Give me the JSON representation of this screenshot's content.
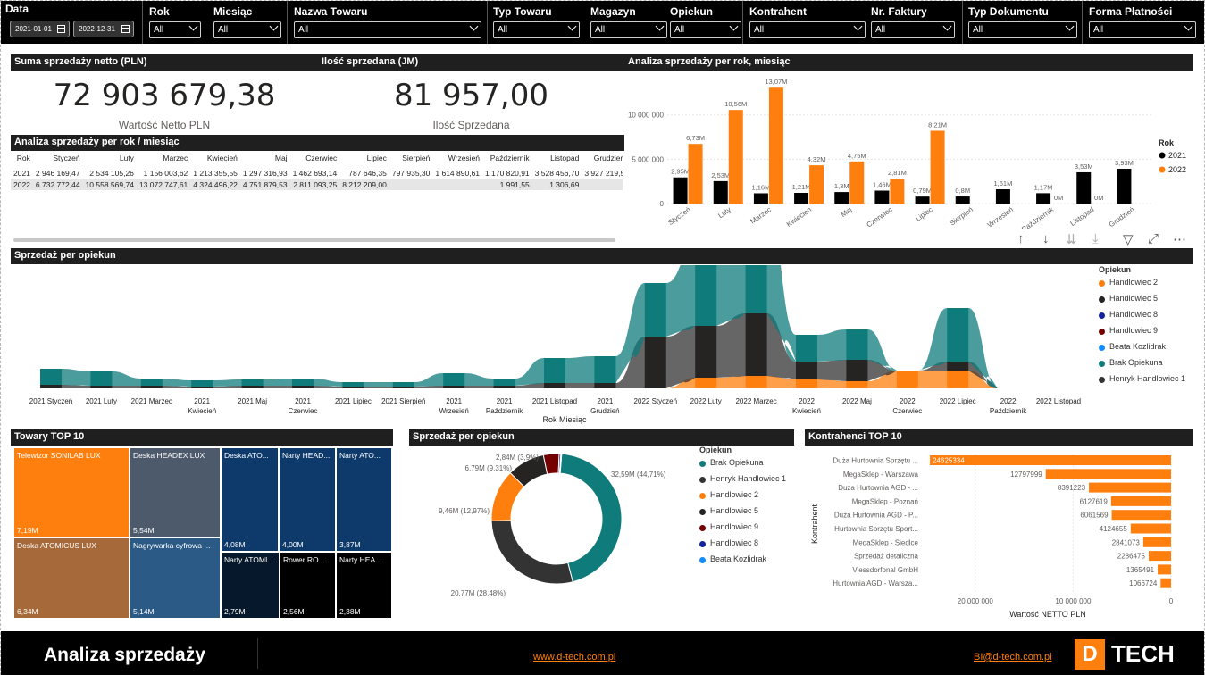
{
  "filters": {
    "date_label": "Data",
    "date_from": "2021-01-01",
    "date_to": "2022-12-31",
    "slicers": [
      {
        "label": "Rok",
        "value": "All"
      },
      {
        "label": "Miesiąc",
        "value": "All"
      },
      {
        "label": "Nazwa Towaru",
        "value": "All"
      },
      {
        "label": "Typ Towaru",
        "value": "All"
      },
      {
        "label": "Magazyn",
        "value": "All"
      },
      {
        "label": "Opiekun",
        "value": "All"
      },
      {
        "label": "Kontrahent",
        "value": "All"
      },
      {
        "label": "Nr. Faktury",
        "value": "All"
      },
      {
        "label": "Typ Dokumentu",
        "value": "All"
      },
      {
        "label": "Forma Płatności",
        "value": "All"
      }
    ]
  },
  "kpi": {
    "sales_header": "Suma sprzedaży netto (PLN)",
    "sales_value": "72 903 679,38",
    "sales_sub": "Wartość Netto PLN",
    "qty_header": "Ilość sprzedana (JM)",
    "qty_value": "81 957,00",
    "qty_sub": "Ilość Sprzedana"
  },
  "matrix": {
    "header": "Analiza sprzedaży per rok / miesiąc",
    "columns": [
      "Rok",
      "Styczeń",
      "Luty",
      "Marzec",
      "Kwiecień",
      "Maj",
      "Czerwiec",
      "Lipiec",
      "Sierpień",
      "Wrzesień",
      "Październik",
      "Listopad",
      "Grudzień"
    ],
    "rows": [
      [
        "2021",
        "2 946 169,47",
        "2 534 105,26",
        "1 156 003,62",
        "1 213 355,55",
        "1 297 316,93",
        "1 462 693,14",
        "787 646,35",
        "797 935,30",
        "1 614 890,61",
        "1 170 820,91",
        "3 528 456,70",
        "3 927 219,5"
      ],
      [
        "2022",
        "6 732 772,44",
        "10 558 569,74",
        "13 072 747,61",
        "4 324 496,22",
        "4 751 879,53",
        "2 811 093,25",
        "8 212 209,00",
        "",
        "",
        "1 991,55",
        "1 306,69",
        ""
      ]
    ]
  },
  "bar_chart": {
    "header": "Analiza sprzedaży per rok, miesiąc",
    "legend_title": "Rok",
    "colors": {
      "2021": "#000000",
      "2022": "#ff7f0e"
    },
    "y_ticks": [
      "0",
      "5 000 000",
      "10 000 000"
    ]
  },
  "chart_data": [
    {
      "type": "bar",
      "title": "Analiza sprzedaży per rok, miesiąc",
      "categories": [
        "Styczeń",
        "Luty",
        "Marzec",
        "Kwiecień",
        "Maj",
        "Czerwiec",
        "Lipiec",
        "Sierpień",
        "Wrzesień",
        "Październik",
        "Listopad",
        "Grudzień"
      ],
      "series": [
        {
          "name": "2021",
          "values": [
            2.95,
            2.53,
            1.16,
            1.21,
            1.3,
            1.46,
            0.79,
            0.8,
            1.61,
            1.17,
            3.53,
            3.93
          ],
          "labels": [
            "2,95M",
            "2,53M",
            "1,16M",
            "1,21M",
            "1,3M",
            "1,46M",
            "0,79M",
            "0,8M",
            "1,61M",
            "1,17M",
            "3,53M",
            "3,93M"
          ]
        },
        {
          "name": "2022",
          "values": [
            6.73,
            10.56,
            13.07,
            4.32,
            4.75,
            2.81,
            8.21,
            null,
            null,
            0,
            0,
            null
          ],
          "labels": [
            "6,73M",
            "10,56M",
            "13,07M",
            "4,32M",
            "4,75M",
            "2,81M",
            "8,21M",
            "",
            "",
            "0M",
            "0M",
            ""
          ]
        }
      ],
      "ylim": [
        0,
        14
      ],
      "legend": "right"
    },
    {
      "type": "pie",
      "title": "Sprzedaż per opiekun",
      "categories": [
        "Brak Opiekuna",
        "Henryk Handlowiec 1",
        "Handlowiec 2",
        "Handlowiec 5",
        "Handlowiec 9",
        "Handlowiec 8",
        "Beata Kozlidrak"
      ],
      "values": [
        32.59,
        20.77,
        9.46,
        6.79,
        2.84,
        0.3,
        0.15
      ],
      "labels": [
        "32,59M (44,71%)",
        "20,77M (28,48%)",
        "9,46M (12,97%)",
        "6,79M (9,31%)",
        "2,84M (3,9%)",
        "",
        ""
      ]
    },
    {
      "type": "bar",
      "title": "Kontrahenci TOP 10",
      "categories": [
        "Duża Hurtownia Sprzętu ...",
        "MegaSklep - Warszawa",
        "Duża Hurtownia AGD - ...",
        "MegaSklep - Poznań",
        "Duża Hurtownia AGD - P...",
        "Hurtownia Sprzętu Sport...",
        "MegaSklep - Siedlce",
        "Sprzedaż detaliczna",
        "Viessdorfonal GmbH",
        "Hurtownia AGD - Warsza..."
      ],
      "values": [
        24625334,
        12797999,
        8391223,
        6127619,
        6061569,
        4124655,
        2841073,
        2286475,
        1365491,
        1066724
      ],
      "xlabel": "Wartość NETTO PLN",
      "ylabel": "Kontrahent",
      "x_ticks": [
        "20 000 000",
        "10 000 000",
        "0"
      ]
    },
    {
      "type": "area",
      "title": "Sprzedaż per opiekun",
      "categories": [
        "2021 Styczeń",
        "2021 Luty",
        "2021 Marzec",
        "2021 Kwiecień",
        "2021 Maj",
        "2021 Czerwiec",
        "2021 Lipiec",
        "2021 Sierpień",
        "2021 Wrzesień",
        "2021 Październik",
        "2021 Listopad",
        "2021 Grudzień",
        "2022 Styczeń",
        "2022 Luty",
        "2022 Marzec",
        "2022 Kwiecień",
        "2022 Maj",
        "2022 Czerwiec",
        "2022 Lipiec",
        "2022 Październik",
        "2022 Listopad"
      ],
      "xlabel": "Rok Miesiąc"
    }
  ],
  "ribbon": {
    "header": "Sprzedaż per opiekun",
    "legend_title": "Opiekun",
    "legend": [
      {
        "name": "Handlowiec 2",
        "color": "#ff7f0e"
      },
      {
        "name": "Handlowiec 5",
        "color": "#252423"
      },
      {
        "name": "Handlowiec 8",
        "color": "#12239e"
      },
      {
        "name": "Handlowiec 9",
        "color": "#750000"
      },
      {
        "name": "Beata Kozlidrak",
        "color": "#118dff"
      },
      {
        "name": "Brak Opiekuna",
        "color": "#0f7b7b"
      },
      {
        "name": "Henryk Handlowiec 1",
        "color": "#333333"
      }
    ],
    "x_labels": [
      [
        "2021 Styczeń"
      ],
      [
        "2021 Luty"
      ],
      [
        "2021 Marzec"
      ],
      [
        "2021",
        "Kwiecień"
      ],
      [
        "2021 Maj"
      ],
      [
        "2021",
        "Czerwiec"
      ],
      [
        "2021 Lipiec"
      ],
      [
        "2021 Sierpień"
      ],
      [
        "2021",
        "Wrzesień"
      ],
      [
        "2021",
        "Październik"
      ],
      [
        "2021 Listopad"
      ],
      [
        "2021",
        "Grudzień"
      ],
      [
        "2022 Styczeń"
      ],
      [
        "2022 Luty"
      ],
      [
        "2022 Marzec"
      ],
      [
        "2022",
        "Kwiecień"
      ],
      [
        "2022 Maj"
      ],
      [
        "2022",
        "Czerwiec"
      ],
      [
        "2022 Lipiec"
      ],
      [
        "2022",
        "Październik"
      ],
      [
        "2022 Listopad"
      ]
    ],
    "x_axis_title": "Rok Miesiąc"
  },
  "treemap": {
    "header": "Towary TOP 10",
    "items": [
      {
        "name": "Telewizor SONILAB LUX",
        "value": "7,19M",
        "color": "#ff7f0e"
      },
      {
        "name": "Deska ATOMICUS LUX",
        "value": "6,34M",
        "color": "#a66a3a"
      },
      {
        "name": "Deska HEADEX LUX",
        "value": "5,54M",
        "color": "#4d5a6b"
      },
      {
        "name": "Nagrywarka cyfrowa ...",
        "value": "5,14M",
        "color": "#2b5a86"
      },
      {
        "name": "Deska ATO...",
        "value": "4,08M",
        "color": "#0d3a6b"
      },
      {
        "name": "Narty HEAD...",
        "value": "4,00M",
        "color": "#0d3a6b"
      },
      {
        "name": "Narty ATO...",
        "value": "3,87M",
        "color": "#0d3a6b"
      },
      {
        "name": "Narty ATOMI...",
        "value": "2,79M",
        "color": "#06182c"
      },
      {
        "name": "Rower RO...",
        "value": "2,56M",
        "color": "#000000"
      },
      {
        "name": "Narty HEA...",
        "value": "2,38M",
        "color": "#000000"
      }
    ]
  },
  "donut": {
    "header": "Sprzedaż per opiekun",
    "legend_title": "Opiekun",
    "legend": [
      {
        "name": "Brak Opiekuna",
        "color": "#0f7b7b"
      },
      {
        "name": "Henryk Handlowiec 1",
        "color": "#333333"
      },
      {
        "name": "Handlowiec 2",
        "color": "#ff7f0e"
      },
      {
        "name": "Handlowiec 5",
        "color": "#252423"
      },
      {
        "name": "Handlowiec 9",
        "color": "#750000"
      },
      {
        "name": "Handlowiec 8",
        "color": "#12239e"
      },
      {
        "name": "Beata Kozlidrak",
        "color": "#118dff"
      }
    ]
  },
  "contractors": {
    "header": "Kontrahenci TOP 10",
    "bar_color": "#ff7f0e"
  },
  "footer": {
    "title": "Analiza sprzedaży",
    "link1": "www.d-tech.com.pl",
    "link2": "BI@d-tech.com.pl",
    "logo_letter": "D",
    "logo_text": "TECH"
  }
}
